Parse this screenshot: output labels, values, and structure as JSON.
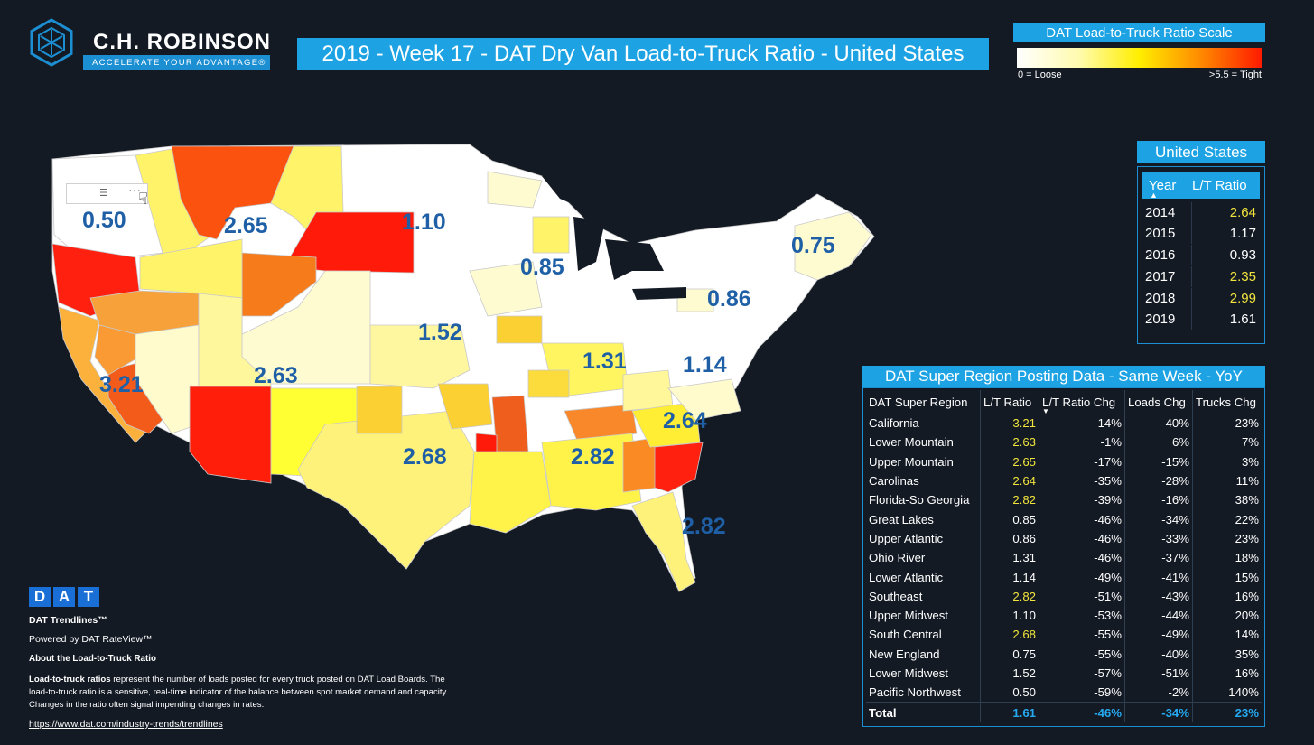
{
  "brand": {
    "name": "C.H. ROBINSON",
    "tagline": "ACCELERATE YOUR ADVANTAGE®"
  },
  "title": "2019 - Week 17 - DAT Dry Van Load-to-Truck Ratio - United States",
  "scale": {
    "title": "DAT Load-to-Truck Ratio Scale",
    "low_label": "0 = Loose",
    "high_label": ">5.5 = Tight",
    "colors": [
      "#ffffff",
      "#fffbb0",
      "#ffee00",
      "#ff8a00",
      "#ff1b00"
    ]
  },
  "map_labels": {
    "pacific_northwest": "0.50",
    "upper_mountain": "2.65",
    "upper_midwest": "1.10",
    "new_england": "0.75",
    "great_lakes": "0.85",
    "upper_atlantic": "0.86",
    "lower_midwest": "1.52",
    "ohio_river": "1.31",
    "lower_atlantic": "1.14",
    "california": "3.21",
    "lower_mountain": "2.63",
    "carolinas": "2.64",
    "south_central": "2.68",
    "southeast": "2.82",
    "florida": "2.82"
  },
  "us_table": {
    "title": "United States",
    "col_year": "Year",
    "col_ratio": "L/T Ratio",
    "rows": [
      {
        "year": "2014",
        "ratio": "2.64"
      },
      {
        "year": "2015",
        "ratio": "1.17"
      },
      {
        "year": "2016",
        "ratio": "0.93"
      },
      {
        "year": "2017",
        "ratio": "2.35"
      },
      {
        "year": "2018",
        "ratio": "2.99"
      },
      {
        "year": "2019",
        "ratio": "1.61"
      }
    ]
  },
  "region_table": {
    "title": "DAT Super Region Posting Data - Same Week - YoY",
    "headers": [
      "DAT Super Region",
      "L/T Ratio",
      "L/T Ratio Chg",
      "Loads Chg",
      "Trucks Chg"
    ],
    "rows": [
      [
        "California",
        "3.21",
        "14%",
        "40%",
        "23%"
      ],
      [
        "Lower Mountain",
        "2.63",
        "-1%",
        "6%",
        "7%"
      ],
      [
        "Upper Mountain",
        "2.65",
        "-17%",
        "-15%",
        "3%"
      ],
      [
        "Carolinas",
        "2.64",
        "-35%",
        "-28%",
        "11%"
      ],
      [
        "Florida-So Georgia",
        "2.82",
        "-39%",
        "-16%",
        "38%"
      ],
      [
        "Great Lakes",
        "0.85",
        "-46%",
        "-34%",
        "22%"
      ],
      [
        "Upper Atlantic",
        "0.86",
        "-46%",
        "-33%",
        "23%"
      ],
      [
        "Ohio River",
        "1.31",
        "-46%",
        "-37%",
        "18%"
      ],
      [
        "Lower Atlantic",
        "1.14",
        "-49%",
        "-41%",
        "15%"
      ],
      [
        "Southeast",
        "2.82",
        "-51%",
        "-43%",
        "16%"
      ],
      [
        "Upper Midwest",
        "1.10",
        "-53%",
        "-44%",
        "20%"
      ],
      [
        "South Central",
        "2.68",
        "-55%",
        "-49%",
        "14%"
      ],
      [
        "New England",
        "0.75",
        "-55%",
        "-40%",
        "35%"
      ],
      [
        "Lower Midwest",
        "1.52",
        "-57%",
        "-51%",
        "16%"
      ],
      [
        "Pacific Northwest",
        "0.50",
        "-59%",
        "-2%",
        "140%"
      ]
    ],
    "total": [
      "Total",
      "1.61",
      "-46%",
      "-34%",
      "23%"
    ]
  },
  "footer": {
    "dat_logo": "DAT",
    "trendlines": "DAT Trendlines™",
    "powered": "Powered by DAT RateView™",
    "about_title": "About the Load-to-Truck Ratio",
    "about_bold": "Load-to-truck ratios",
    "about_text": " represent the number of loads posted for every truck posted on DAT Load Boards.  The load-to-truck ratio is a sensitive, real-time indicator of the balance between spot market demand and capacity.  Changes in the ratio often signal impending changes in rates.",
    "link": "https://www.dat.com/industry-trends/trendlines"
  }
}
